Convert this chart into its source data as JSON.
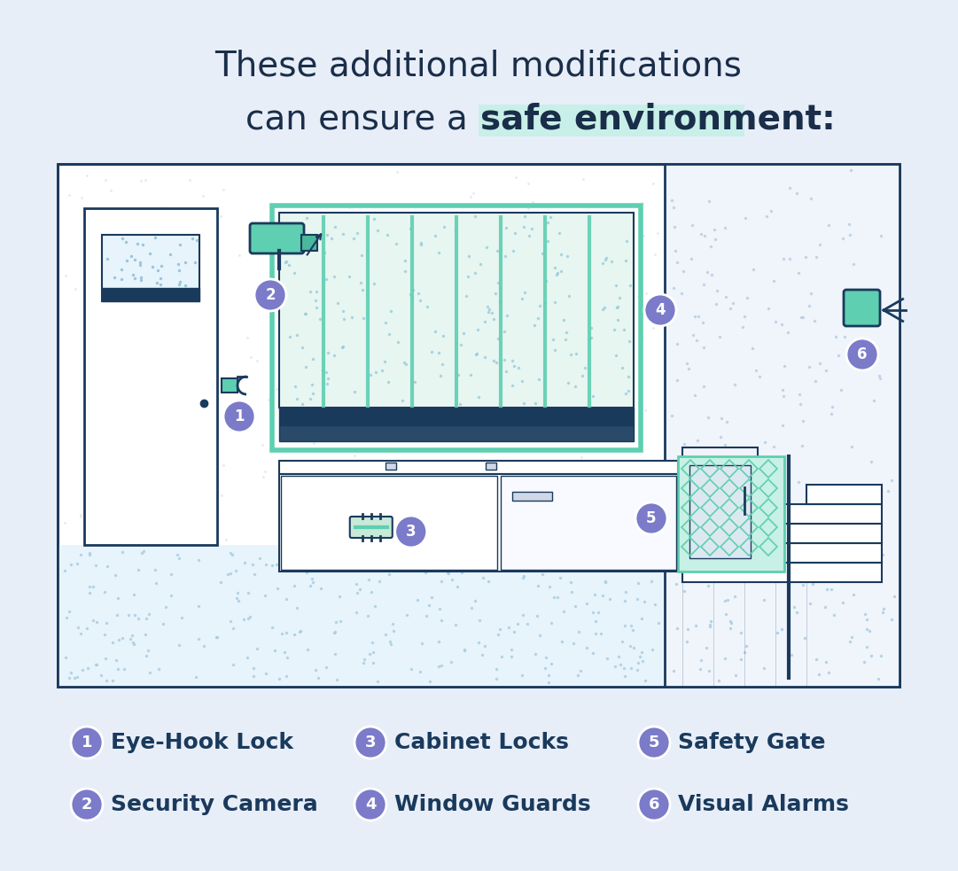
{
  "bg_color": "#e8eef8",
  "card_color": "#ffffff",
  "title_line1": "These additional modifications",
  "title_line2_normal": "can ensure a ",
  "title_line2_bold": "safe environment:",
  "title_color": "#1a2e4a",
  "title_bold_color": "#1a3a5c",
  "highlight_color": "#c8f0e8",
  "floor_bg": "#e8f4fc",
  "floor_dot_color": "#a8d0e8",
  "wall_color": "#ffffff",
  "wall_stroke": "#1a3a5c",
  "mint_green": "#5ecfb1",
  "dark_blue": "#1a3a5c",
  "light_blue": "#6baed6",
  "purple_badge": "#7b7bca",
  "legend_items": [
    {
      "num": "1",
      "label": "Eye-Hook Lock"
    },
    {
      "num": "2",
      "label": "Security Camera"
    },
    {
      "num": "3",
      "label": "Cabinet Locks"
    },
    {
      "num": "4",
      "label": "Window Guards"
    },
    {
      "num": "5",
      "label": "Safety Gate"
    },
    {
      "num": "6",
      "label": "Visual Alarms"
    }
  ]
}
